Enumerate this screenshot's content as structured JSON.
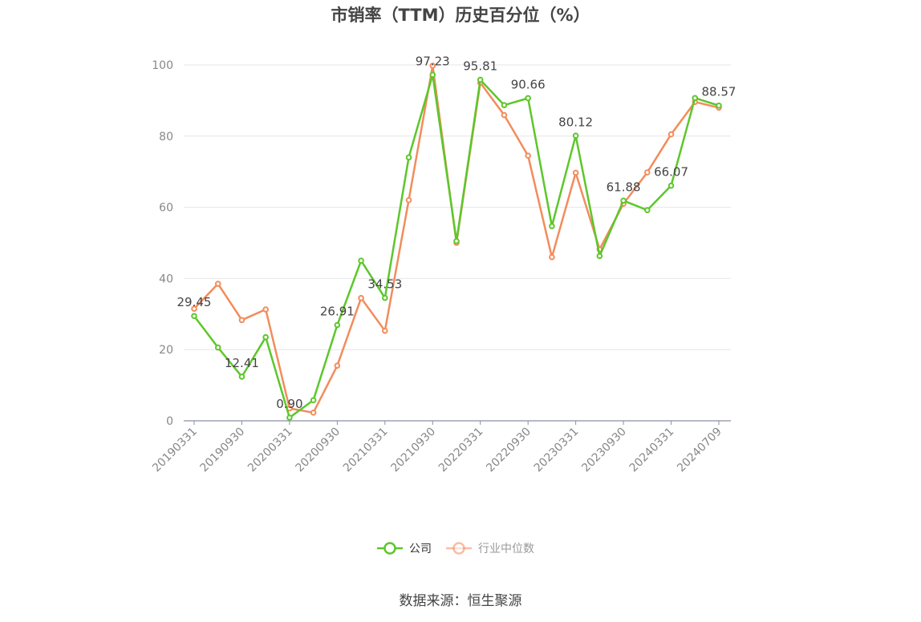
{
  "chart_data": {
    "type": "line",
    "title": "市销率（TTM）历史百分位（%）",
    "source": "数据来源：恒生聚源",
    "ylim": [
      0,
      100
    ],
    "yticks": [
      0,
      20,
      40,
      60,
      80,
      100
    ],
    "grid": true,
    "legend_position": "bottom",
    "x": [
      "20190331",
      "20190630",
      "20190930",
      "20191231",
      "20200331",
      "20200630",
      "20200930",
      "20201231",
      "20210331",
      "20210630",
      "20210930",
      "20211231",
      "20220331",
      "20220630",
      "20220930",
      "20221231",
      "20230331",
      "20230630",
      "20230930",
      "20231231",
      "20240331",
      "20240630",
      "20240709"
    ],
    "xtick_labels": [
      "20190331",
      "20190930",
      "20200331",
      "20200930",
      "20210331",
      "20210930",
      "20220331",
      "20220930",
      "20230331",
      "20230930",
      "20240331",
      "20240709"
    ],
    "series": [
      {
        "name": "公司",
        "color": "#5cc72a",
        "values": [
          29.45,
          20.6,
          12.41,
          23.5,
          0.9,
          5.8,
          26.91,
          45.0,
          34.53,
          74.0,
          97.23,
          50.5,
          95.81,
          88.7,
          90.66,
          54.7,
          80.12,
          46.3,
          61.88,
          59.2,
          66.07,
          90.7,
          88.57
        ],
        "labels": [
          "29.45",
          null,
          "12.41",
          null,
          "0.90",
          null,
          "26.91",
          null,
          "34.53",
          null,
          "97.23",
          null,
          "95.81",
          null,
          "90.66",
          null,
          "80.12",
          null,
          "61.88",
          null,
          "66.07",
          null,
          "88.57"
        ]
      },
      {
        "name": "行业中位数",
        "color": "#f28c5c",
        "values": [
          31.5,
          38.5,
          28.3,
          31.3,
          3.5,
          2.3,
          15.5,
          34.5,
          25.3,
          62.0,
          99.8,
          50.0,
          95.0,
          85.9,
          74.5,
          46.0,
          69.7,
          48.2,
          61.0,
          69.8,
          80.5,
          89.6,
          88.0
        ]
      }
    ]
  }
}
